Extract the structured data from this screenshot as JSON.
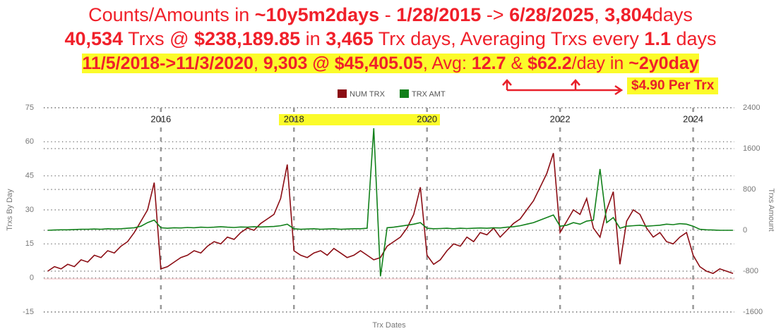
{
  "chart_data": {
    "type": "line",
    "title_lines": [
      [
        {
          "text": "Counts/Amounts in ",
          "bold": false
        },
        {
          "text": "~10y5m2days",
          "bold": true
        },
        {
          "text": " - ",
          "bold": false
        },
        {
          "text": "1/28/2015",
          "bold": true
        },
        {
          "text": " -> ",
          "bold": false
        },
        {
          "text": "6/28/2025",
          "bold": true
        },
        {
          "text": ", ",
          "bold": false
        },
        {
          "text": "3,804",
          "bold": true
        },
        {
          "text": "days",
          "bold": false
        }
      ],
      [
        {
          "text": "40,534",
          "bold": true
        },
        {
          "text": " Trxs @ ",
          "bold": false
        },
        {
          "text": "$238,189.85",
          "bold": true
        },
        {
          "text": " in ",
          "bold": false
        },
        {
          "text": "3,465",
          "bold": true
        },
        {
          "text": " Trx days, Averaging Trxs every ",
          "bold": false
        },
        {
          "text": "1.1",
          "bold": true
        },
        {
          "text": " days",
          "bold": false
        }
      ],
      [
        {
          "text": "11/5/2018->11/3/2020",
          "bold": true
        },
        {
          "text": ", ",
          "bold": false
        },
        {
          "text": "9,303 @ $45,405.05",
          "bold": true
        },
        {
          "text": ", Avg: ",
          "bold": false
        },
        {
          "text": "12.7",
          "bold": true
        },
        {
          "text": " & ",
          "bold": false
        },
        {
          "text": "$62.2",
          "bold": true
        },
        {
          "text": "/day in ",
          "bold": false
        },
        {
          "text": "~2y0day",
          "bold": true
        }
      ]
    ],
    "annotation": "$4.90 Per Trx",
    "x_label": "Trx Dates",
    "y_label": "Trxs By Day",
    "y2_label": "Trxs Amount",
    "xlim": [
      2014.24,
      2024.62
    ],
    "xticks": [
      2016,
      2018,
      2020,
      2022,
      2024
    ],
    "ylim": [
      -15,
      75
    ],
    "yticks": [
      -15,
      0,
      15,
      30,
      45,
      60,
      75
    ],
    "y2lim": [
      -1600,
      2400
    ],
    "y2ticks": [
      -1600,
      -800,
      0,
      800,
      1600,
      2400
    ],
    "grid": true,
    "x": [
      2014.3,
      2014.4,
      2014.5,
      2014.6,
      2014.7,
      2014.8,
      2014.9,
      2015.0,
      2015.1,
      2015.2,
      2015.3,
      2015.4,
      2015.5,
      2015.6,
      2015.7,
      2015.8,
      2015.9,
      2016.0,
      2016.1,
      2016.2,
      2016.3,
      2016.4,
      2016.5,
      2016.6,
      2016.7,
      2016.8,
      2016.9,
      2017.0,
      2017.1,
      2017.2,
      2017.3,
      2017.4,
      2017.5,
      2017.6,
      2017.7,
      2017.8,
      2017.9,
      2018.0,
      2018.1,
      2018.2,
      2018.3,
      2018.4,
      2018.5,
      2018.6,
      2018.7,
      2018.8,
      2018.9,
      2019.0,
      2019.1,
      2019.2,
      2019.3,
      2019.4,
      2019.5,
      2019.6,
      2019.7,
      2019.8,
      2019.9,
      2020.0,
      2020.1,
      2020.2,
      2020.3,
      2020.4,
      2020.5,
      2020.6,
      2020.7,
      2020.8,
      2020.9,
      2021.0,
      2021.1,
      2021.2,
      2021.3,
      2021.4,
      2021.5,
      2021.6,
      2021.7,
      2021.8,
      2021.9,
      2022.0,
      2022.1,
      2022.2,
      2022.3,
      2022.4,
      2022.5,
      2022.6,
      2022.7,
      2022.8,
      2022.9,
      2023.0,
      2023.1,
      2023.2,
      2023.3,
      2023.4,
      2023.5,
      2023.6,
      2023.7,
      2023.8,
      2023.9,
      2024.0,
      2024.1,
      2024.2,
      2024.3,
      2024.4,
      2024.5,
      2024.6
    ],
    "series": [
      {
        "name": "NUM TRX",
        "color": "#8b0d14",
        "axis": "y",
        "values": [
          3,
          5,
          4,
          6,
          5,
          8,
          7,
          10,
          9,
          12,
          11,
          14,
          16,
          20,
          25,
          30,
          42,
          4,
          5,
          7,
          9,
          10,
          12,
          11,
          14,
          16,
          15,
          18,
          17,
          20,
          22,
          21,
          24,
          26,
          28,
          35,
          50,
          12,
          10,
          9,
          11,
          12,
          10,
          13,
          11,
          9,
          10,
          12,
          10,
          8,
          9,
          14,
          16,
          18,
          22,
          28,
          40,
          10,
          6,
          8,
          12,
          15,
          14,
          18,
          16,
          20,
          19,
          22,
          18,
          21,
          24,
          26,
          30,
          34,
          40,
          46,
          55,
          20,
          25,
          30,
          28,
          35,
          22,
          18,
          30,
          38,
          6,
          25,
          30,
          28,
          22,
          18,
          20,
          16,
          15,
          18,
          20,
          10,
          5,
          3,
          2,
          4,
          3,
          2
        ]
      },
      {
        "name": "TRX AMT",
        "color": "#11801a",
        "axis": "y2",
        "values": [
          0,
          5,
          10,
          10,
          15,
          20,
          20,
          25,
          20,
          30,
          25,
          30,
          40,
          50,
          80,
          150,
          200,
          50,
          40,
          50,
          45,
          55,
          50,
          60,
          55,
          60,
          70,
          60,
          55,
          65,
          60,
          70,
          65,
          70,
          75,
          90,
          120,
          30,
          20,
          25,
          30,
          20,
          25,
          30,
          20,
          25,
          30,
          30,
          40,
          2000,
          -900,
          50,
          60,
          80,
          100,
          120,
          150,
          40,
          30,
          35,
          40,
          30,
          40,
          35,
          40,
          45,
          40,
          50,
          45,
          60,
          70,
          90,
          120,
          150,
          200,
          250,
          300,
          80,
          100,
          150,
          120,
          180,
          200,
          1200,
          150,
          250,
          40,
          80,
          90,
          100,
          80,
          90,
          100,
          120,
          110,
          130,
          120,
          80,
          20,
          10,
          5,
          0,
          0,
          0
        ]
      }
    ]
  }
}
